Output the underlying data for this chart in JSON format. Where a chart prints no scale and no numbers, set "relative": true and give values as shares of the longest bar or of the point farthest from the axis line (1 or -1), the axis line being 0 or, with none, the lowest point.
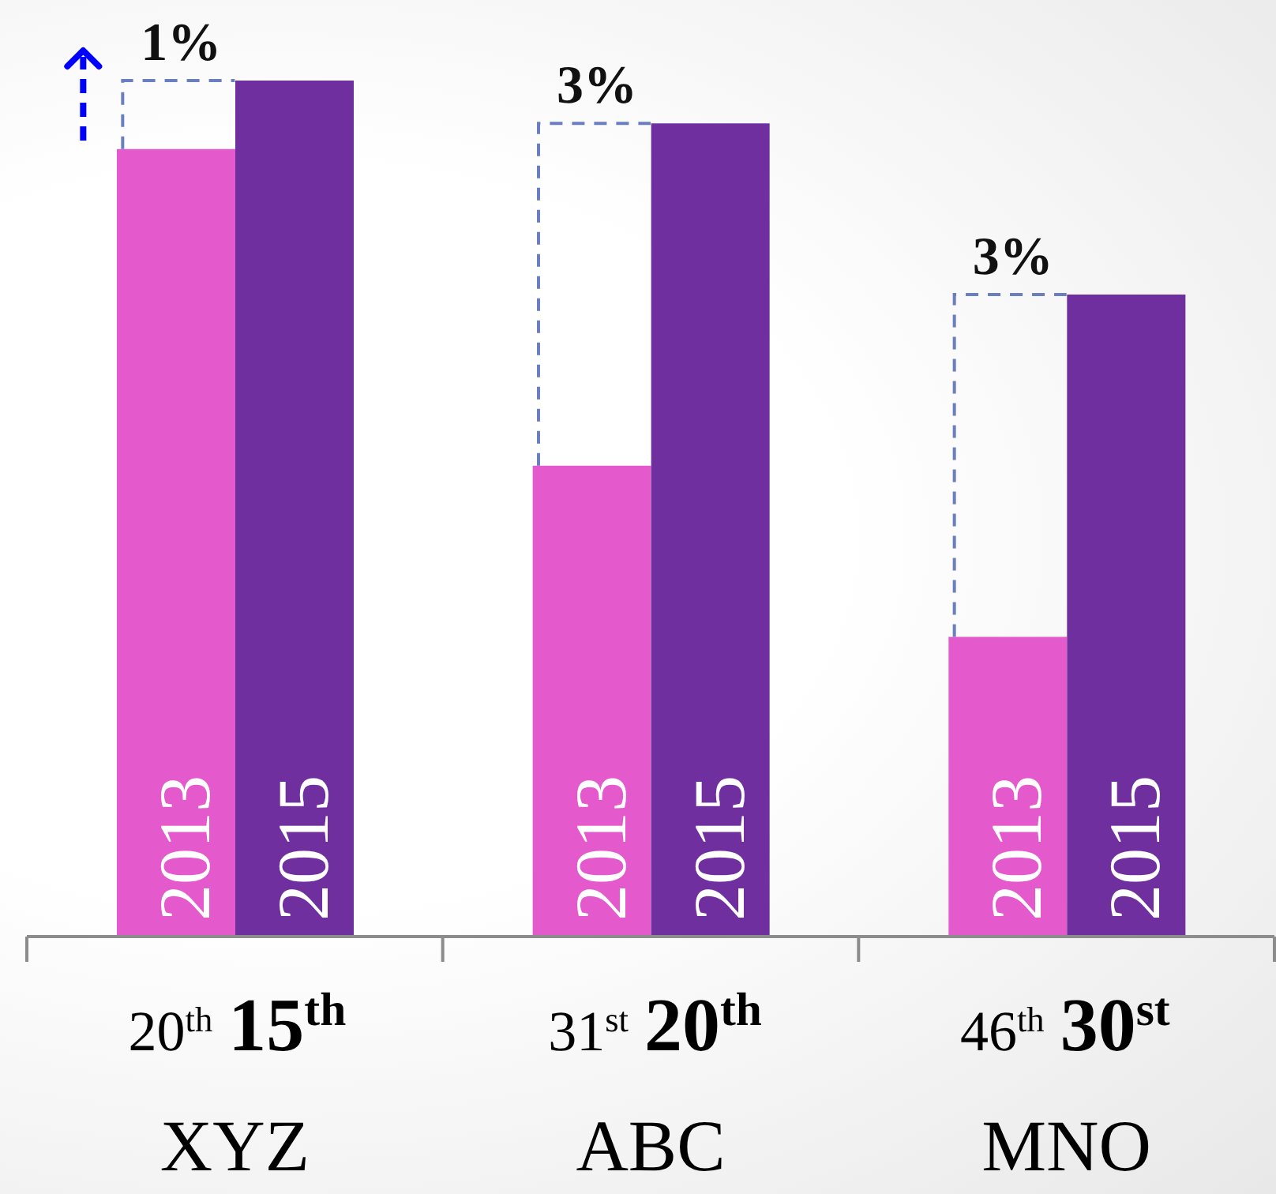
{
  "chart_data": {
    "type": "bar",
    "relative": true,
    "categories": [
      "XYZ",
      "ABC",
      "MNO"
    ],
    "series": [
      {
        "name": "2013",
        "color": "#e459cc",
        "values": [
          0.92,
          0.55,
          0.35
        ]
      },
      {
        "name": "2015",
        "color": "#6f2f9f",
        "values": [
          1,
          0.95,
          0.75
        ]
      }
    ],
    "annotations": [
      {
        "text": "1%",
        "x": "XYZ",
        "y": 1
      },
      {
        "text": "3%",
        "x": "ABC",
        "y": 0.95
      },
      {
        "text": "3%",
        "x": "MNO",
        "y": 0.75
      },
      "20$^{th}$",
      "15$^{th}$",
      "31$^{st}$",
      "20$^{th}$",
      "46$^{th}$",
      "30$^{st}$"
    ]
  }
}
